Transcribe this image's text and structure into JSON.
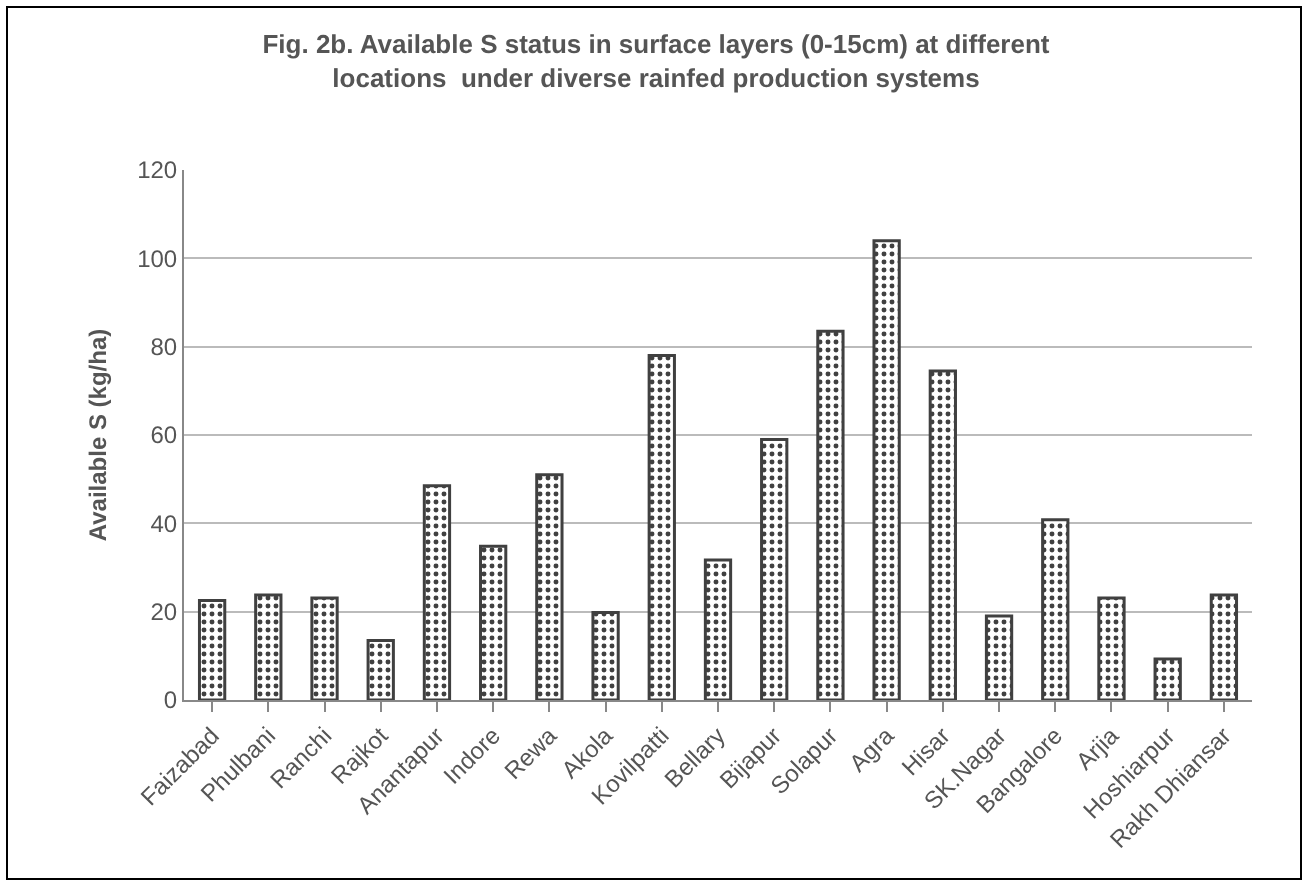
{
  "chart_data": {
    "type": "bar",
    "title": "Fig. 2b. Available S status in surface layers (0-15cm) at different\nlocations  under diverse rainfed production systems",
    "ylabel": "Available S (kg/ha)",
    "categories": [
      "Faizabad",
      "Phulbani",
      "Ranchi",
      "Rajkot",
      "Anantapur",
      "Indore",
      "Rewa",
      "Akola",
      "Kovilpatti",
      "Bellary",
      "Bijapur",
      "Solapur",
      "Agra",
      "Hisar",
      "SK.Nagar",
      "Bangalore",
      "Arjia",
      "Hoshiarpur",
      "Rakh Dhiansar"
    ],
    "values": [
      22.5,
      23.8,
      23.1,
      13.5,
      48.5,
      34.8,
      51,
      19.8,
      78,
      31.7,
      59,
      83.5,
      104,
      74.5,
      19,
      40.8,
      23.1,
      9.3,
      23.8
    ],
    "color": "#404040",
    "ylim": [
      0,
      120
    ],
    "yticks": [
      0,
      20,
      40,
      60,
      80,
      100,
      120
    ],
    "grid": "y"
  }
}
